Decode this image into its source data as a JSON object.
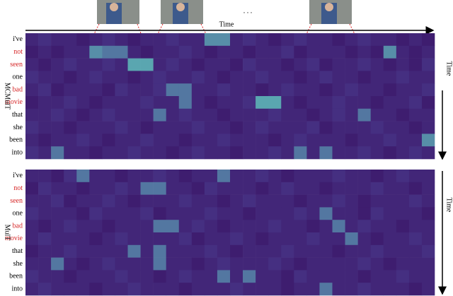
{
  "figure": {
    "time_label": "Time",
    "ellipsis": ". . .",
    "side_time_label": "Time",
    "vlim": [
      0,
      9
    ],
    "colormap": [
      "#3a1466",
      "#4b3c8e",
      "#5aa6b0"
    ],
    "row_label_colors": [
      "#000000",
      "#d62728",
      "#d62728",
      "#000000",
      "#d62728",
      "#d62728",
      "#000000",
      "#000000",
      "#000000",
      "#000000"
    ],
    "panels": [
      {
        "name": "MCMulT",
        "side_label": "Time",
        "rows": [
          "i've",
          "not",
          "seen",
          "one",
          "bad",
          "movie",
          "that",
          "she",
          "been",
          "into"
        ],
        "values": [
          [
            2,
            3,
            2,
            2,
            1,
            2,
            3,
            2,
            1,
            2,
            2,
            3,
            2,
            2,
            8,
            8,
            2,
            3,
            2,
            1,
            2,
            3,
            2,
            2,
            1,
            2,
            3,
            2,
            2,
            1,
            2,
            1
          ],
          [
            1,
            2,
            1,
            2,
            2,
            8,
            7,
            7,
            2,
            1,
            2,
            2,
            3,
            2,
            1,
            2,
            2,
            1,
            2,
            2,
            3,
            1,
            2,
            2,
            2,
            1,
            2,
            1,
            8,
            2,
            1,
            2
          ],
          [
            2,
            1,
            2,
            3,
            2,
            2,
            3,
            2,
            9,
            9,
            2,
            3,
            2,
            1,
            2,
            2,
            1,
            3,
            2,
            2,
            1,
            2,
            3,
            1,
            2,
            2,
            3,
            2,
            1,
            2,
            1,
            3
          ],
          [
            3,
            2,
            2,
            1,
            2,
            3,
            2,
            2,
            1,
            2,
            3,
            2,
            2,
            3,
            2,
            1,
            2,
            2,
            3,
            2,
            2,
            1,
            2,
            3,
            2,
            2,
            1,
            2,
            2,
            3,
            2,
            2
          ],
          [
            2,
            3,
            1,
            2,
            2,
            2,
            1,
            3,
            2,
            2,
            3,
            7,
            7,
            2,
            2,
            3,
            2,
            2,
            1,
            2,
            3,
            2,
            2,
            1,
            2,
            3,
            2,
            2,
            1,
            2,
            2,
            3
          ],
          [
            1,
            2,
            2,
            3,
            2,
            1,
            2,
            2,
            2,
            3,
            2,
            2,
            7,
            2,
            1,
            2,
            2,
            3,
            9,
            9,
            2,
            1,
            2,
            2,
            3,
            2,
            2,
            1,
            2,
            2,
            3,
            1
          ],
          [
            2,
            2,
            3,
            2,
            1,
            2,
            3,
            2,
            2,
            2,
            7,
            2,
            3,
            2,
            2,
            1,
            2,
            2,
            2,
            3,
            2,
            2,
            1,
            2,
            3,
            2,
            7,
            2,
            2,
            1,
            2,
            2
          ],
          [
            3,
            2,
            2,
            1,
            2,
            2,
            2,
            3,
            2,
            1,
            2,
            2,
            2,
            3,
            2,
            2,
            1,
            2,
            3,
            2,
            2,
            2,
            3,
            1,
            2,
            2,
            2,
            3,
            2,
            2,
            1,
            2
          ],
          [
            2,
            1,
            2,
            2,
            3,
            2,
            1,
            2,
            2,
            3,
            2,
            2,
            1,
            2,
            2,
            3,
            2,
            2,
            2,
            1,
            2,
            3,
            2,
            2,
            2,
            1,
            2,
            2,
            3,
            2,
            2,
            8
          ],
          [
            3,
            2,
            7,
            2,
            2,
            1,
            2,
            2,
            3,
            2,
            2,
            1,
            2,
            3,
            2,
            2,
            1,
            2,
            2,
            3,
            2,
            7,
            2,
            7,
            2,
            2,
            3,
            2,
            1,
            2,
            3,
            2
          ]
        ]
      },
      {
        "name": "MulT",
        "side_label": "Time",
        "rows": [
          "i've",
          "not",
          "seen",
          "one",
          "bad",
          "movie",
          "that",
          "she",
          "been",
          "into"
        ],
        "values": [
          [
            2,
            2,
            1,
            3,
            7,
            2,
            2,
            1,
            2,
            2,
            3,
            2,
            1,
            2,
            2,
            7,
            2,
            2,
            3,
            2,
            1,
            2,
            2,
            2,
            3,
            2,
            2,
            1,
            2,
            3,
            2,
            2
          ],
          [
            1,
            3,
            2,
            2,
            1,
            2,
            2,
            3,
            2,
            7,
            7,
            2,
            2,
            1,
            3,
            2,
            2,
            2,
            1,
            2,
            3,
            2,
            2,
            1,
            2,
            2,
            2,
            3,
            2,
            2,
            1,
            2
          ],
          [
            2,
            2,
            3,
            1,
            2,
            2,
            3,
            2,
            1,
            2,
            2,
            2,
            3,
            2,
            2,
            1,
            2,
            3,
            2,
            2,
            2,
            1,
            2,
            2,
            3,
            2,
            1,
            2,
            2,
            2,
            3,
            2
          ],
          [
            3,
            2,
            2,
            2,
            1,
            3,
            2,
            2,
            2,
            3,
            1,
            2,
            2,
            2,
            3,
            2,
            2,
            1,
            2,
            2,
            2,
            3,
            2,
            7,
            2,
            2,
            1,
            3,
            2,
            2,
            2,
            1
          ],
          [
            2,
            1,
            2,
            3,
            2,
            2,
            1,
            2,
            2,
            2,
            7,
            7,
            2,
            3,
            2,
            1,
            2,
            2,
            2,
            3,
            2,
            2,
            1,
            2,
            7,
            2,
            3,
            2,
            2,
            1,
            2,
            2
          ],
          [
            2,
            3,
            2,
            2,
            2,
            1,
            2,
            3,
            2,
            2,
            2,
            2,
            3,
            1,
            2,
            2,
            3,
            2,
            1,
            2,
            2,
            2,
            3,
            2,
            2,
            7,
            2,
            1,
            2,
            2,
            3,
            2
          ],
          [
            1,
            2,
            2,
            3,
            2,
            2,
            2,
            2,
            7,
            2,
            7,
            2,
            2,
            2,
            3,
            2,
            1,
            2,
            2,
            2,
            3,
            2,
            2,
            2,
            1,
            2,
            2,
            3,
            2,
            2,
            2,
            3
          ],
          [
            2,
            2,
            7,
            2,
            1,
            2,
            3,
            2,
            2,
            2,
            7,
            2,
            2,
            1,
            2,
            3,
            2,
            2,
            2,
            3,
            2,
            1,
            2,
            2,
            2,
            2,
            3,
            2,
            1,
            2,
            2,
            2
          ],
          [
            3,
            2,
            2,
            1,
            2,
            2,
            2,
            3,
            2,
            2,
            1,
            2,
            3,
            2,
            2,
            7,
            2,
            7,
            2,
            2,
            1,
            3,
            2,
            2,
            2,
            2,
            1,
            2,
            2,
            3,
            2,
            2
          ],
          [
            2,
            3,
            2,
            2,
            2,
            1,
            2,
            2,
            3,
            2,
            2,
            2,
            1,
            2,
            2,
            2,
            3,
            2,
            2,
            2,
            1,
            2,
            2,
            7,
            2,
            2,
            3,
            2,
            2,
            2,
            1,
            2
          ]
        ]
      }
    ]
  }
}
